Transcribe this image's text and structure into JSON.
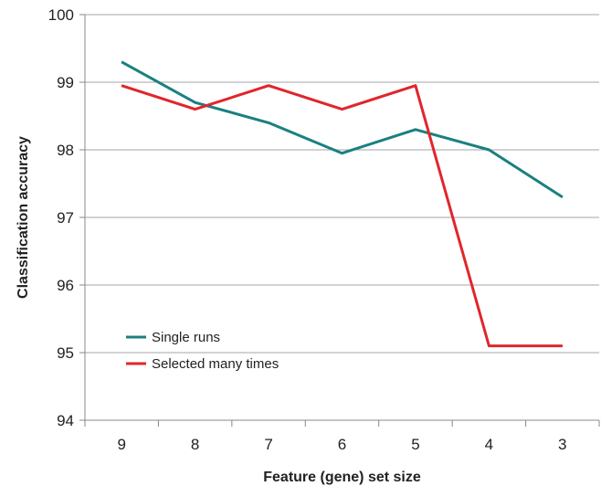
{
  "chart_data": {
    "type": "line",
    "categories": [
      "9",
      "8",
      "7",
      "6",
      "5",
      "4",
      "3"
    ],
    "series": [
      {
        "name": "Single runs",
        "color": "#1a8080",
        "values": [
          99.3,
          98.7,
          98.4,
          97.95,
          98.3,
          98.0,
          97.3
        ]
      },
      {
        "name": "Selected many times",
        "color": "#e0262b",
        "values": [
          98.95,
          98.6,
          98.95,
          98.6,
          98.95,
          95.1,
          95.1
        ]
      }
    ],
    "title": "",
    "xlabel": "Feature (gene) set size",
    "ylabel": "Classification accuracy",
    "ylim": [
      94,
      100
    ],
    "yticks": [
      94,
      95,
      96,
      97,
      98,
      99,
      100
    ],
    "grid": true,
    "legend_position": "bottom-left"
  }
}
